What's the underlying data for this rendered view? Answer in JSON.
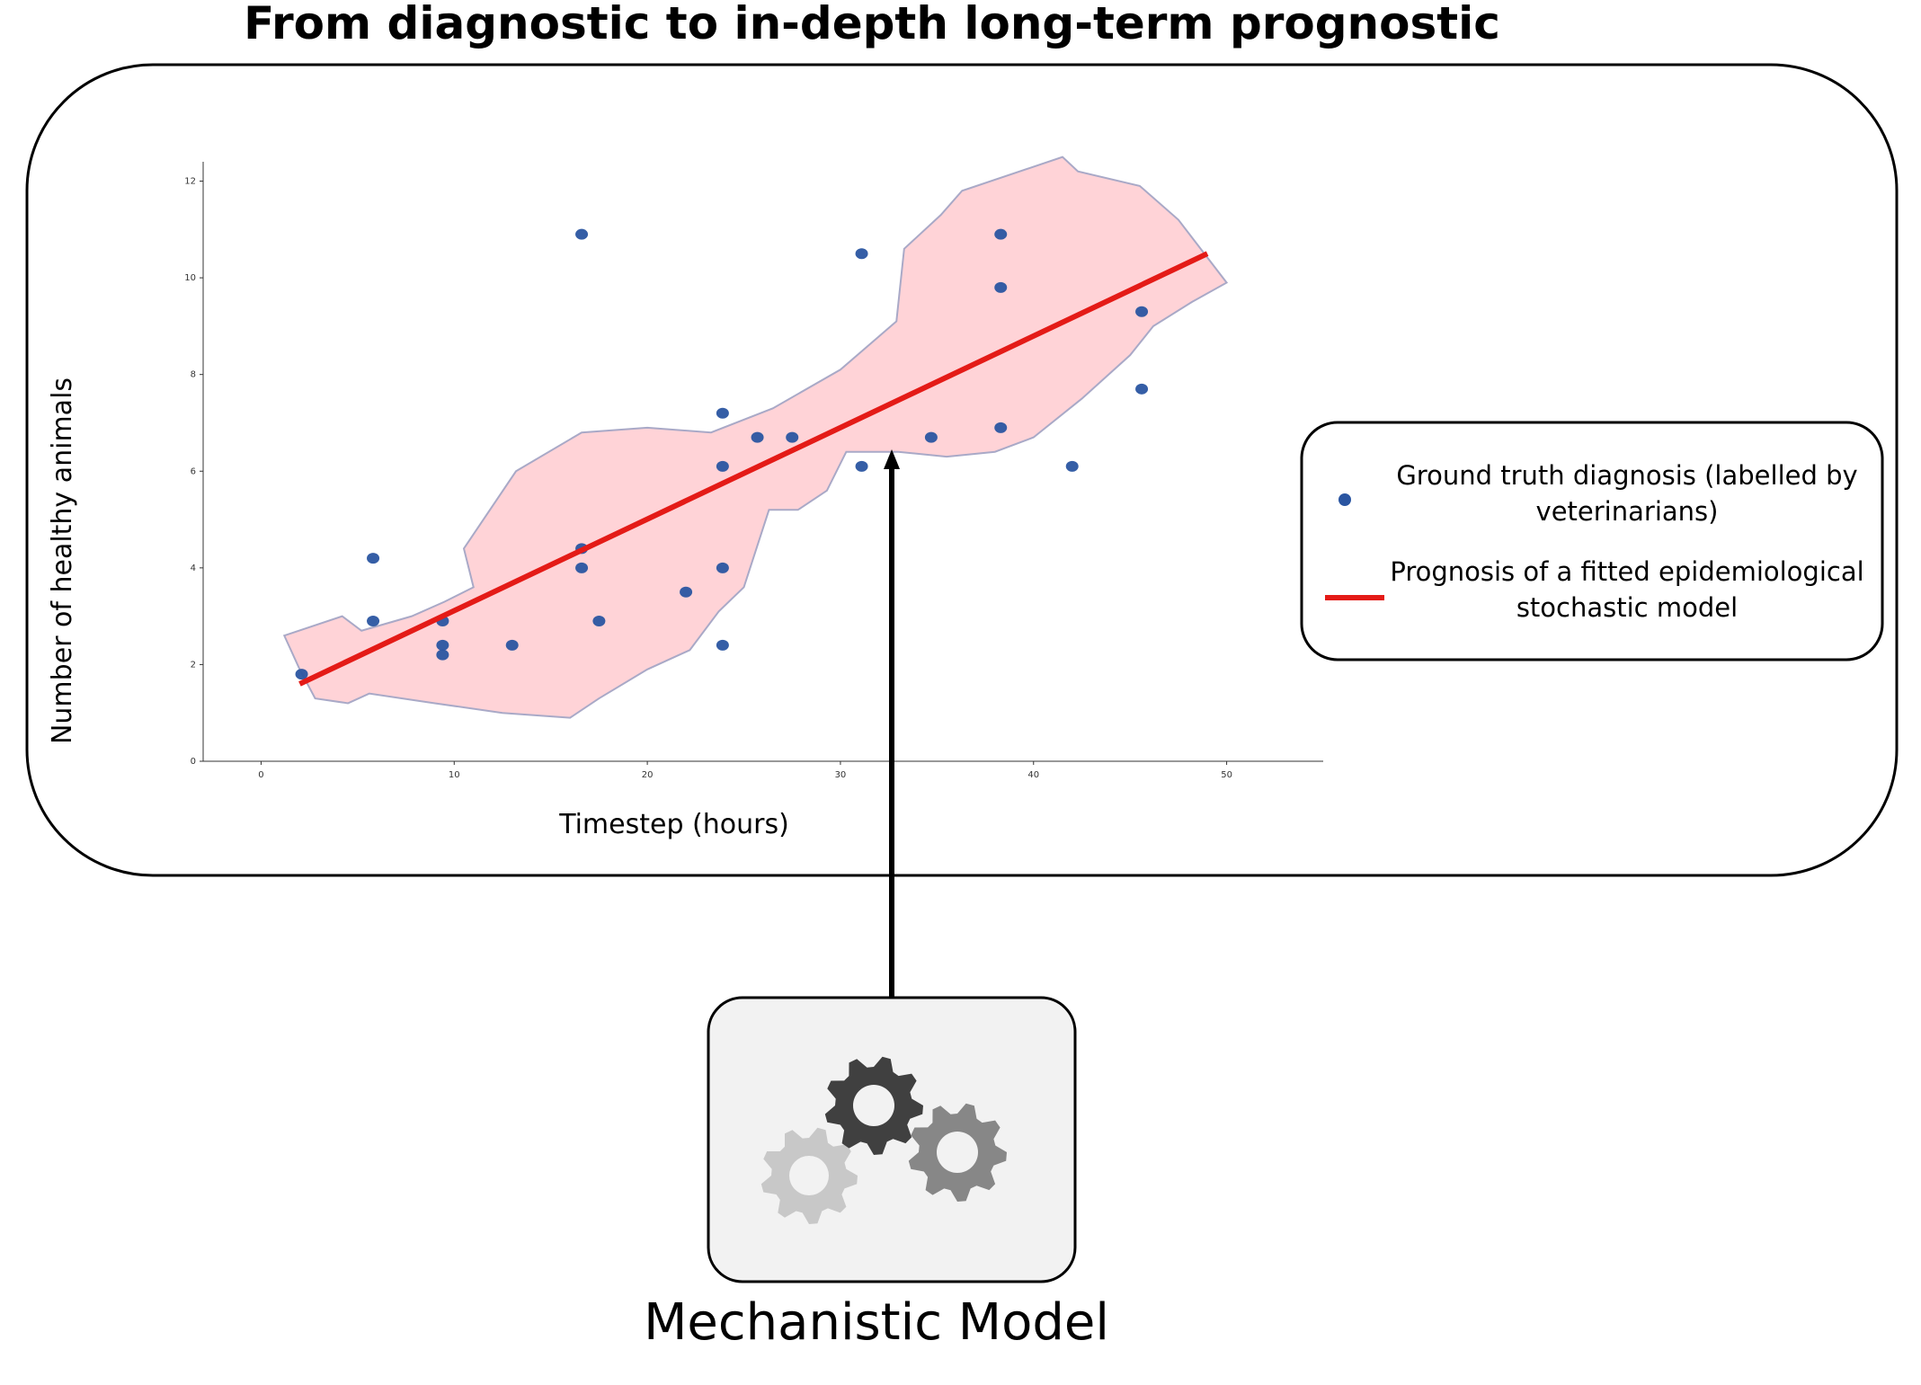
{
  "title": "From diagnostic to in-depth long-term prognostic",
  "mechanistic_model": {
    "label": "Mechanistic Model",
    "icon": "gears-icon"
  },
  "legend": [
    {
      "label": "Ground truth diagnosis (labelled by veterinarians)",
      "marker": "dot",
      "color": "#2a55a1"
    },
    {
      "label": "Prognosis of a fitted epidemiological stochastic model",
      "marker": "line",
      "color": "#e41b17"
    }
  ],
  "colors": {
    "points": "#2a55a1",
    "points_in_band": "#3d3f80",
    "line": "#e41b17",
    "band_fill": "#ffd3d7",
    "band_edge": "#a9a9c7"
  },
  "chart_data": {
    "type": "scatter",
    "xlabel": "Timestep (hours)",
    "ylabel": "Number of healthy animals",
    "xlim": [
      -3,
      55
    ],
    "ylim": [
      0,
      12.4
    ],
    "xticks": [
      0,
      10,
      20,
      30,
      40,
      50
    ],
    "yticks": [
      0,
      2,
      4,
      6,
      8,
      10,
      12
    ],
    "points": [
      {
        "x": 2.1,
        "y": 1.8
      },
      {
        "x": 5.8,
        "y": 4.2
      },
      {
        "x": 5.8,
        "y": 2.9
      },
      {
        "x": 9.4,
        "y": 2.9
      },
      {
        "x": 9.4,
        "y": 2.4
      },
      {
        "x": 9.4,
        "y": 2.2
      },
      {
        "x": 13.0,
        "y": 2.4
      },
      {
        "x": 16.6,
        "y": 10.9
      },
      {
        "x": 16.6,
        "y": 4.4
      },
      {
        "x": 16.6,
        "y": 4.0
      },
      {
        "x": 17.5,
        "y": 2.9
      },
      {
        "x": 22.0,
        "y": 3.5
      },
      {
        "x": 23.9,
        "y": 7.2
      },
      {
        "x": 23.9,
        "y": 6.1
      },
      {
        "x": 23.9,
        "y": 4.0
      },
      {
        "x": 23.9,
        "y": 2.4
      },
      {
        "x": 25.7,
        "y": 6.7
      },
      {
        "x": 27.5,
        "y": 6.7
      },
      {
        "x": 31.1,
        "y": 10.5
      },
      {
        "x": 31.1,
        "y": 6.1
      },
      {
        "x": 34.7,
        "y": 6.7
      },
      {
        "x": 38.3,
        "y": 10.9
      },
      {
        "x": 38.3,
        "y": 9.8
      },
      {
        "x": 38.3,
        "y": 6.9
      },
      {
        "x": 42.0,
        "y": 6.1
      },
      {
        "x": 45.6,
        "y": 9.3
      },
      {
        "x": 45.6,
        "y": 7.7
      }
    ],
    "fit_line": [
      {
        "x": 2.0,
        "y": 1.6
      },
      {
        "x": 49.0,
        "y": 10.5
      }
    ],
    "band": [
      {
        "x": 1.2,
        "y": 2.6
      },
      {
        "x": 4.2,
        "y": 3.0
      },
      {
        "x": 5.2,
        "y": 2.7
      },
      {
        "x": 7.8,
        "y": 3.0
      },
      {
        "x": 9.5,
        "y": 3.3
      },
      {
        "x": 11.0,
        "y": 3.6
      },
      {
        "x": 10.5,
        "y": 4.4
      },
      {
        "x": 13.2,
        "y": 6.0
      },
      {
        "x": 16.6,
        "y": 6.8
      },
      {
        "x": 20.0,
        "y": 6.9
      },
      {
        "x": 23.3,
        "y": 6.8
      },
      {
        "x": 26.5,
        "y": 7.3
      },
      {
        "x": 30.0,
        "y": 8.1
      },
      {
        "x": 32.9,
        "y": 9.1
      },
      {
        "x": 33.3,
        "y": 10.6
      },
      {
        "x": 35.2,
        "y": 11.3
      },
      {
        "x": 36.3,
        "y": 11.8
      },
      {
        "x": 41.5,
        "y": 12.5
      },
      {
        "x": 42.3,
        "y": 12.2
      },
      {
        "x": 45.5,
        "y": 11.9
      },
      {
        "x": 47.5,
        "y": 11.2
      },
      {
        "x": 50.0,
        "y": 9.9
      },
      {
        "x": 48.2,
        "y": 9.5
      },
      {
        "x": 46.2,
        "y": 9.0
      },
      {
        "x": 45.0,
        "y": 8.4
      },
      {
        "x": 42.5,
        "y": 7.5
      },
      {
        "x": 40.0,
        "y": 6.7
      },
      {
        "x": 38.0,
        "y": 6.4
      },
      {
        "x": 35.5,
        "y": 6.3
      },
      {
        "x": 33.0,
        "y": 6.4
      },
      {
        "x": 30.3,
        "y": 6.4
      },
      {
        "x": 29.3,
        "y": 5.6
      },
      {
        "x": 27.8,
        "y": 5.2
      },
      {
        "x": 26.3,
        "y": 5.2
      },
      {
        "x": 25.0,
        "y": 3.6
      },
      {
        "x": 23.7,
        "y": 3.1
      },
      {
        "x": 22.2,
        "y": 2.3
      },
      {
        "x": 20.0,
        "y": 1.9
      },
      {
        "x": 17.5,
        "y": 1.3
      },
      {
        "x": 16.0,
        "y": 0.9
      },
      {
        "x": 12.5,
        "y": 1.0
      },
      {
        "x": 9.0,
        "y": 1.2
      },
      {
        "x": 5.6,
        "y": 1.4
      },
      {
        "x": 4.5,
        "y": 1.2
      },
      {
        "x": 2.8,
        "y": 1.3
      },
      {
        "x": 2.0,
        "y": 1.9
      }
    ]
  }
}
